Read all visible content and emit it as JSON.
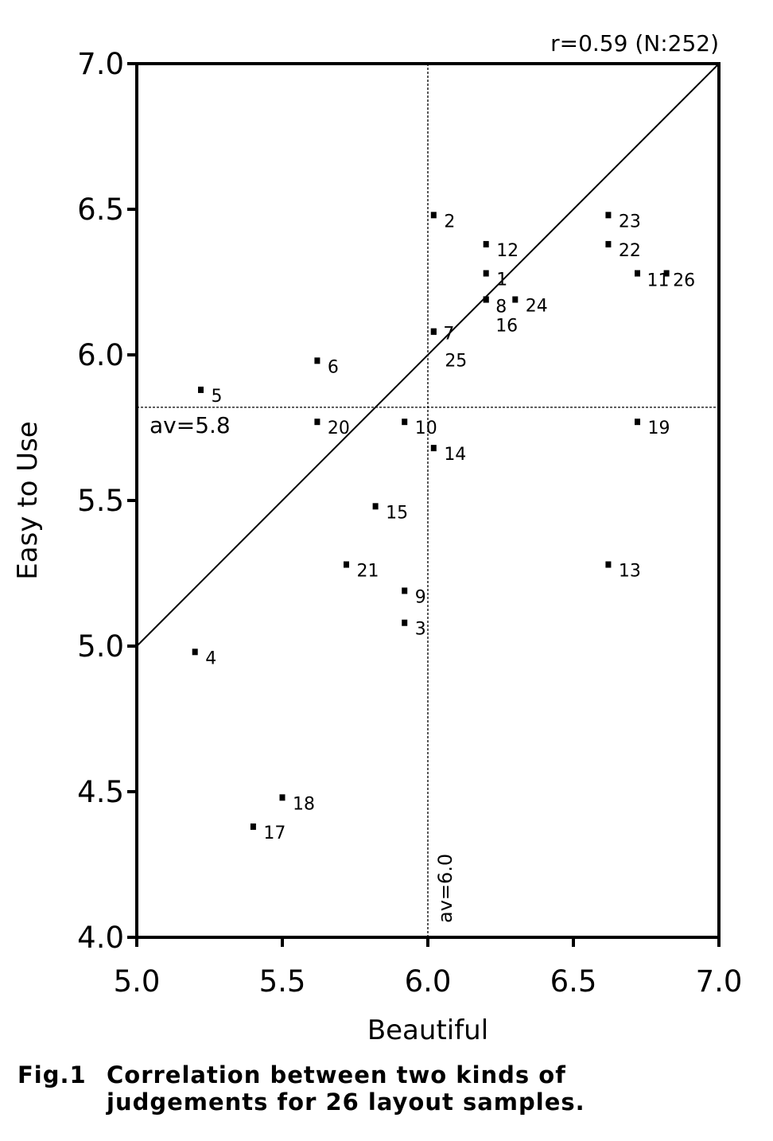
{
  "chart_data": {
    "type": "scatter",
    "annotation_top": "r=0.59 (N:252)",
    "xlabel": "Beautiful",
    "ylabel": "Easy to Use",
    "xlim": [
      5.0,
      7.0
    ],
    "ylim": [
      4.0,
      7.0
    ],
    "x_ticks": [
      "5.0",
      "5.5",
      "6.0",
      "6.5",
      "7.0"
    ],
    "y_ticks": [
      "4.0",
      "4.5",
      "5.0",
      "5.5",
      "6.0",
      "6.5",
      "7.0"
    ],
    "x_tick_values": [
      5.0,
      5.5,
      6.0,
      6.5,
      7.0
    ],
    "y_tick_values": [
      4.0,
      4.5,
      5.0,
      5.5,
      6.0,
      6.5,
      7.0
    ],
    "grid": false,
    "x_mean": {
      "value": 6.0,
      "label": "av=6.0"
    },
    "y_mean": {
      "value": 5.82,
      "label": "av=5.8"
    },
    "diagonal": {
      "from": [
        5.0,
        5.0
      ],
      "to": [
        7.0,
        7.0
      ]
    },
    "points": [
      {
        "id": "1",
        "x": 6.2,
        "y": 6.28
      },
      {
        "id": "2",
        "x": 6.02,
        "y": 6.48
      },
      {
        "id": "3",
        "x": 5.92,
        "y": 5.08
      },
      {
        "id": "4",
        "x": 5.2,
        "y": 4.98
      },
      {
        "id": "5",
        "x": 5.22,
        "y": 5.88
      },
      {
        "id": "6",
        "x": 5.62,
        "y": 5.98
      },
      {
        "id": "7",
        "x": 6.02,
        "y": 6.08
      },
      {
        "id": "8",
        "x": 6.2,
        "y": 6.19
      },
      {
        "id": "9",
        "x": 5.92,
        "y": 5.19
      },
      {
        "id": "10",
        "x": 5.92,
        "y": 5.77
      },
      {
        "id": "11",
        "x": 6.72,
        "y": 6.28
      },
      {
        "id": "12",
        "x": 6.2,
        "y": 6.38
      },
      {
        "id": "13",
        "x": 6.62,
        "y": 5.28
      },
      {
        "id": "14",
        "x": 6.02,
        "y": 5.68
      },
      {
        "id": "15",
        "x": 5.82,
        "y": 5.48
      },
      {
        "id": "16",
        "x": 6.2,
        "y": 6.19
      },
      {
        "id": "17",
        "x": 5.4,
        "y": 4.38
      },
      {
        "id": "18",
        "x": 5.5,
        "y": 4.48
      },
      {
        "id": "19",
        "x": 6.72,
        "y": 5.77
      },
      {
        "id": "20",
        "x": 5.62,
        "y": 5.77
      },
      {
        "id": "21",
        "x": 5.72,
        "y": 5.28
      },
      {
        "id": "22",
        "x": 6.62,
        "y": 6.38
      },
      {
        "id": "23",
        "x": 6.62,
        "y": 6.48
      },
      {
        "id": "24",
        "x": 6.3,
        "y": 6.19
      },
      {
        "id": "25",
        "x": 6.02,
        "y": 6.08
      },
      {
        "id": "26",
        "x": 6.82,
        "y": 6.28
      }
    ]
  },
  "caption": {
    "label": "Fig.1",
    "text": "Correlation between two kinds of judgements for 26 layout samples."
  }
}
